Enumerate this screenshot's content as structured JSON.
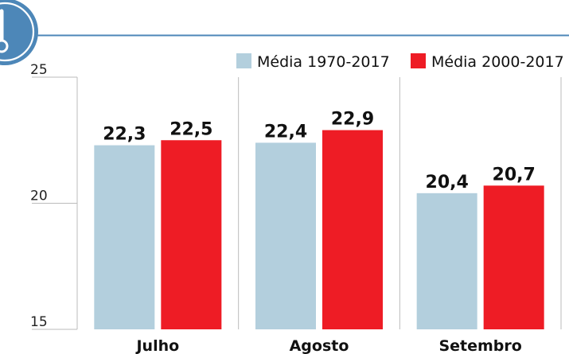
{
  "chart_data": {
    "type": "bar",
    "categories": [
      "Julho",
      "Agosto",
      "Setembro"
    ],
    "series": [
      {
        "name": "Média 1970-2017",
        "values": [
          22.3,
          22.4,
          20.4
        ],
        "labels": [
          "22,3",
          "22,4",
          "20,4"
        ]
      },
      {
        "name": "Média 2000-2017",
        "values": [
          22.5,
          22.9,
          20.7
        ],
        "labels": [
          "22,5",
          "22,9",
          "20,7"
        ]
      }
    ],
    "ylim": [
      15,
      25
    ],
    "yticks": [
      15,
      20,
      25
    ],
    "grid": false,
    "legend_position": "top-right",
    "colors": {
      "series_1": "#b3cfdd",
      "series_2": "#ee1c25",
      "accent": "#4d87b8",
      "axis": "#bbbbbb"
    },
    "icon": "thermometer-icon"
  }
}
